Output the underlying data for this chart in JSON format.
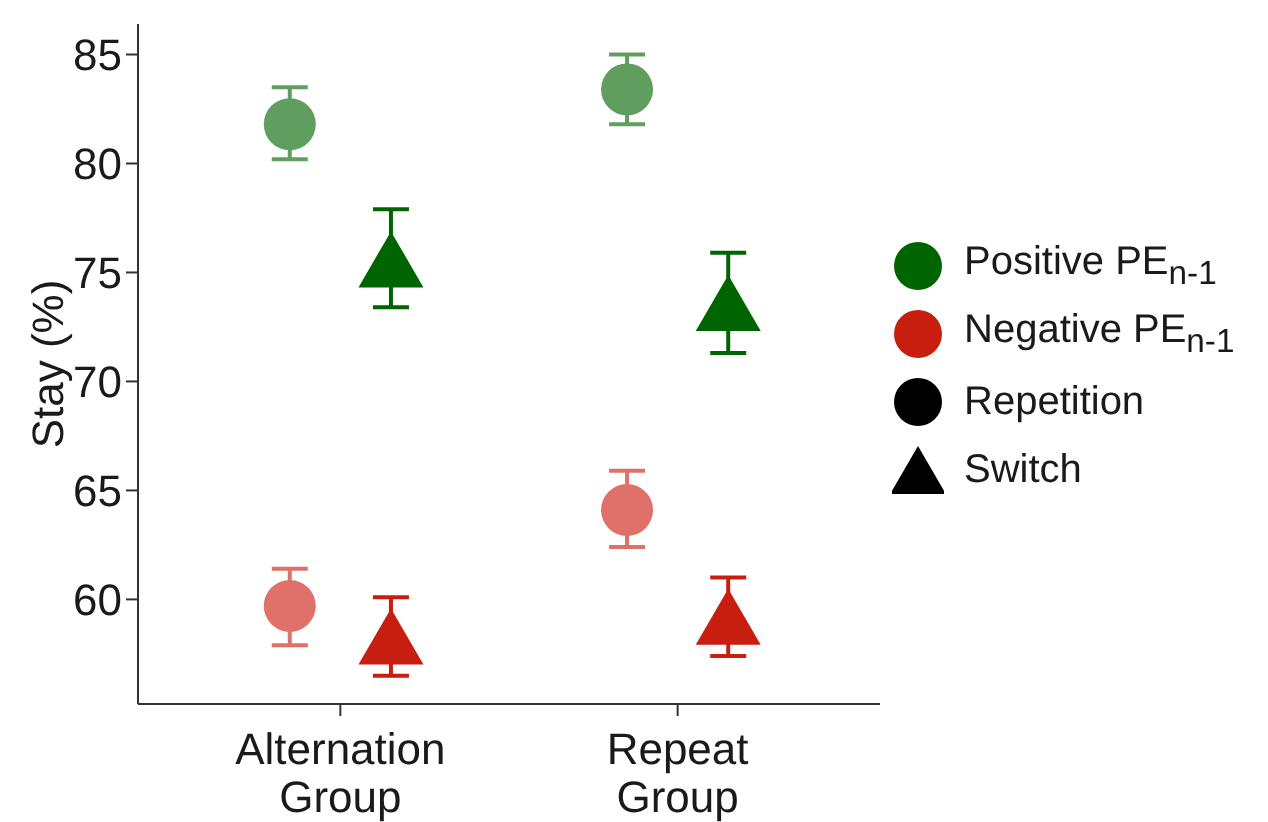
{
  "chart_data": {
    "type": "scatter",
    "ylabel": "Stay (%)",
    "categories": [
      "Alternation Group",
      "Repeat Group"
    ],
    "ylim": [
      55.2,
      86.4
    ],
    "yticks": [
      60,
      65,
      70,
      75,
      80,
      85
    ],
    "grid": false,
    "legend": "right",
    "annotations": [
      "Repetition",
      "Switch"
    ],
    "series": [
      {
        "color": "#5f9e5f",
        "marker": "circle",
        "values": [
          81.8,
          83.4
        ],
        "errors": [
          [
            80.2,
            83.5
          ],
          [
            81.8,
            85.0
          ]
        ]
      },
      {
        "name": "Positive PE$_{n-1}$",
        "color": "#006400",
        "marker": "triangle",
        "values": [
          75.6,
          73.6
        ],
        "errors": [
          [
            73.4,
            77.9
          ],
          [
            71.3,
            75.9
          ]
        ]
      },
      {
        "color": "#e0706a",
        "marker": "circle",
        "values": [
          59.7,
          64.1
        ],
        "errors": [
          [
            57.9,
            61.4
          ],
          [
            62.4,
            65.9
          ]
        ]
      },
      {
        "name": "Negative PE$_{n-1}$",
        "color": "#c81e0f",
        "marker": "triangle",
        "values": [
          58.3,
          59.2
        ],
        "errors": [
          [
            56.5,
            60.1
          ],
          [
            57.4,
            61.0
          ]
        ]
      }
    ]
  }
}
